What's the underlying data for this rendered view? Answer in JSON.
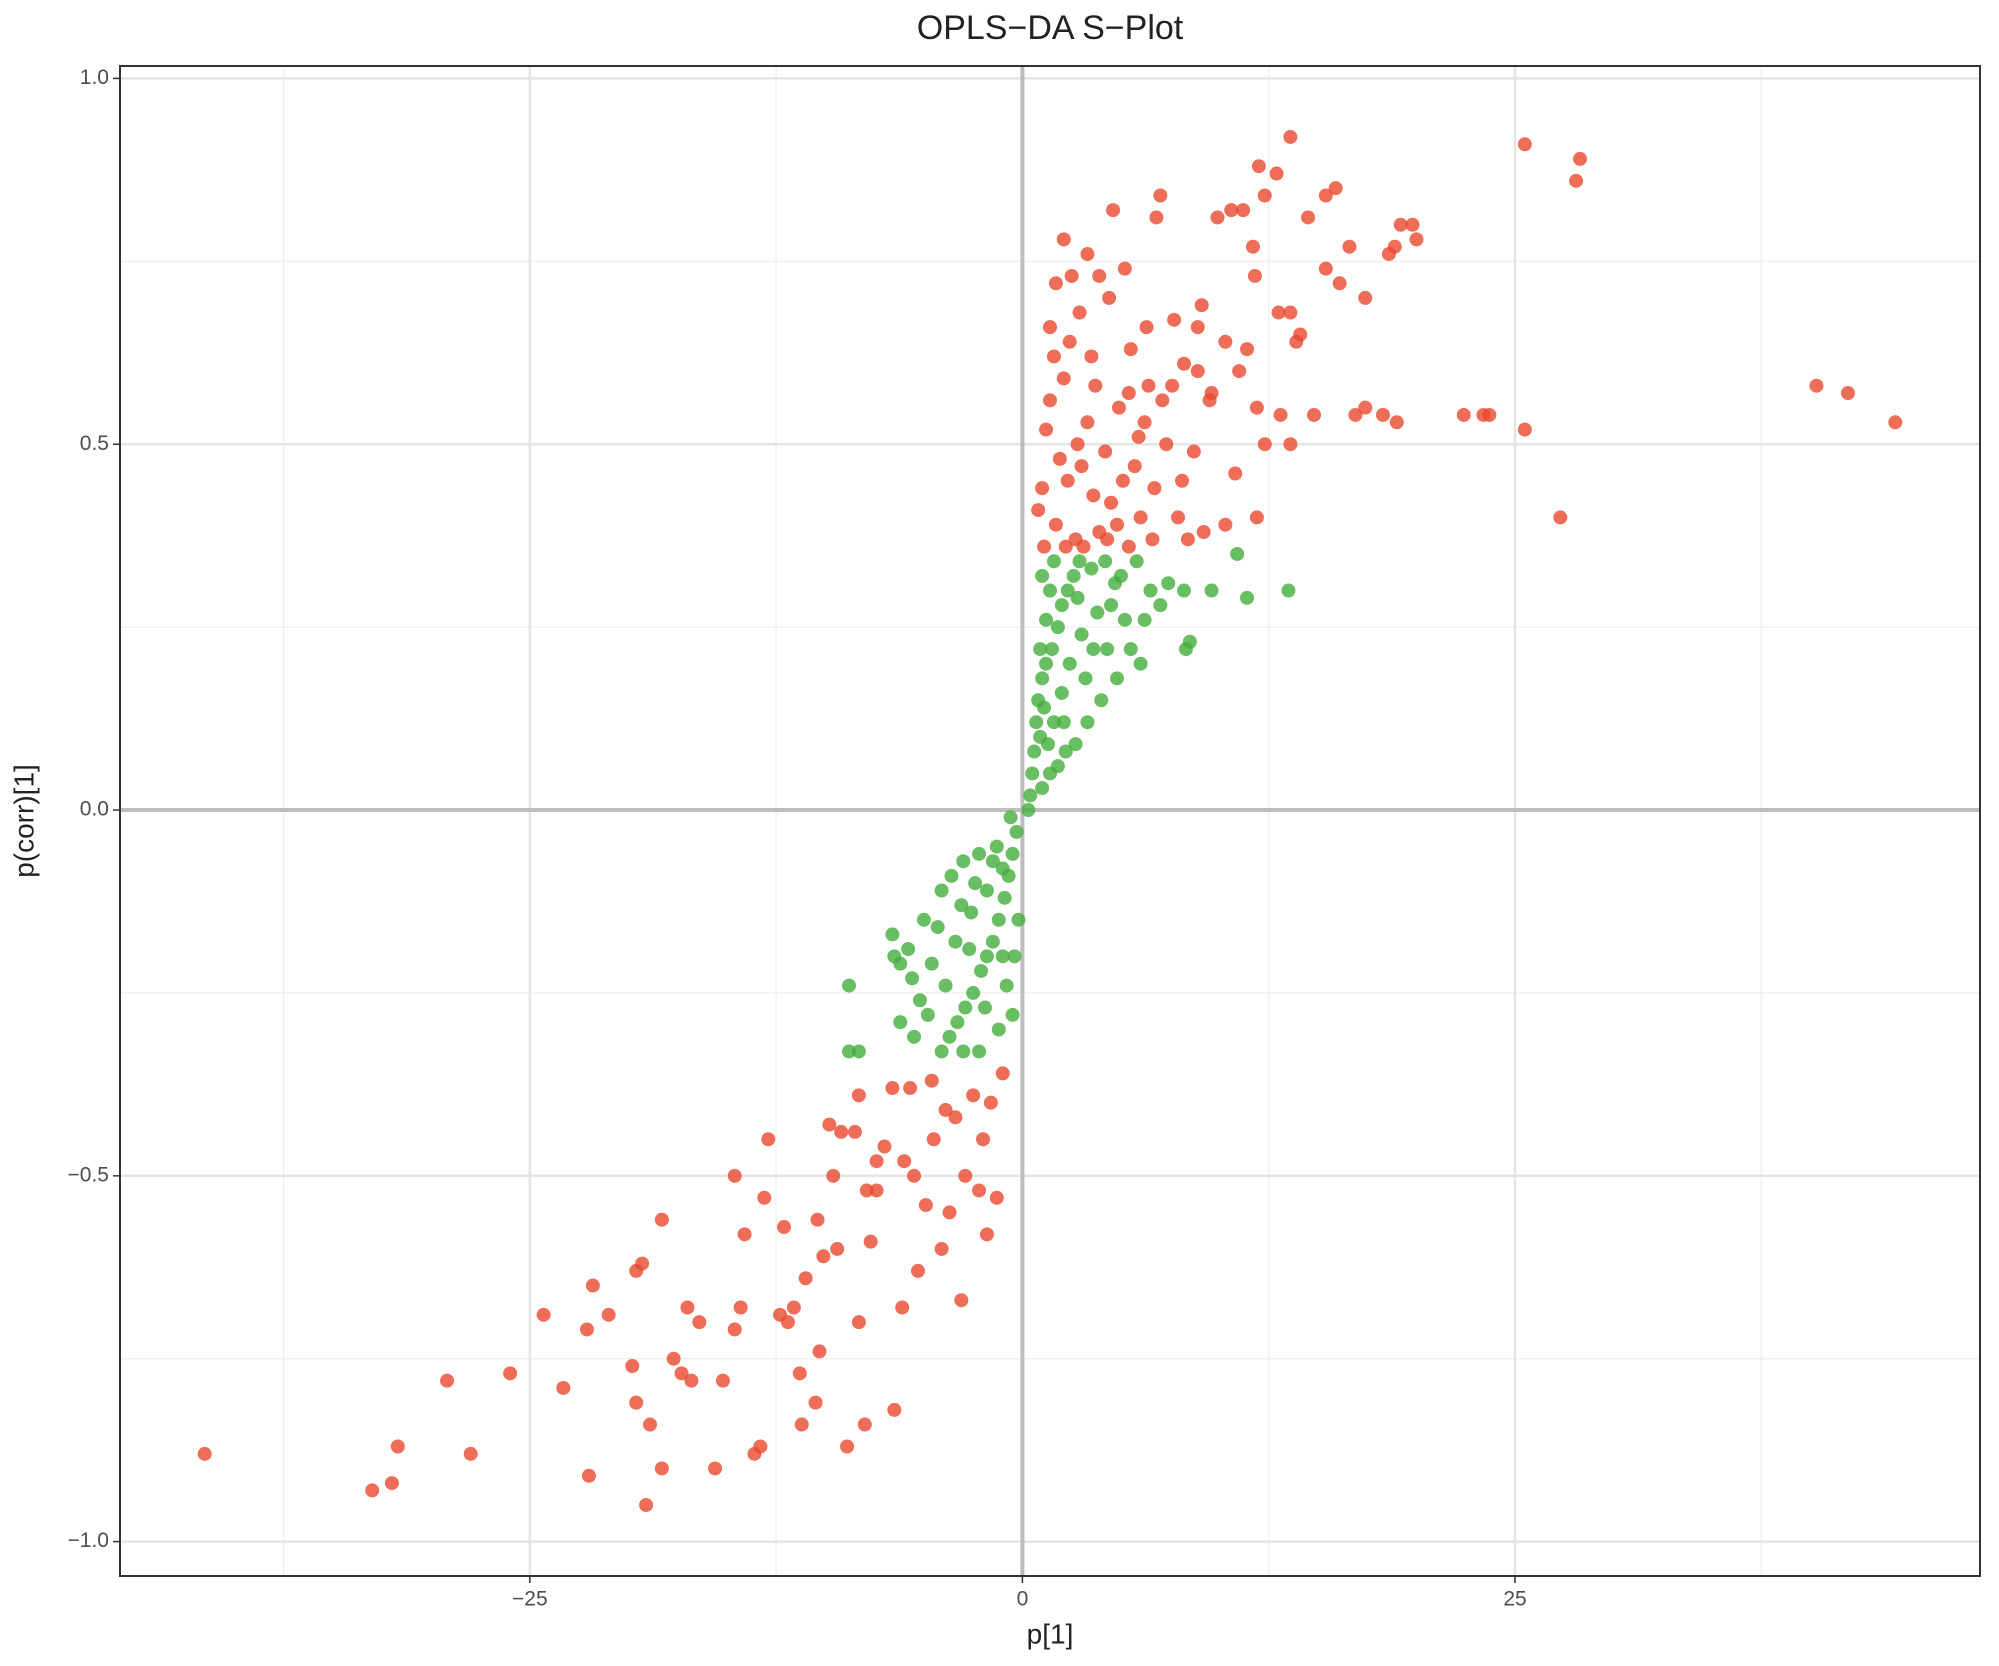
{
  "chart_data": {
    "type": "scatter",
    "title": "OPLS−DA S−Plot",
    "x_label": "p[1]",
    "y_label": "p(corr)[1]",
    "xlim": [
      -45.8,
      48.6
    ],
    "ylim": [
      -1.047,
      1.017
    ],
    "xticks": [
      {
        "value": -25,
        "label": "−25"
      },
      0,
      25
    ],
    "yticks": [
      {
        "value": -1.0,
        "label": "−1.0"
      },
      {
        "value": -0.5,
        "label": "−0.5"
      },
      {
        "value": 0.0,
        "label": "0.0"
      },
      {
        "value": 0.5,
        "label": "0.5"
      },
      {
        "value": 1.0,
        "label": "1.0"
      }
    ],
    "grid": true,
    "zero_lines": {
      "x": 0,
      "y": 0
    },
    "series": [
      {
        "color": "#e8492e",
        "x": [
          25.5,
          13.6,
          28.3,
          28.1,
          12.0,
          12.9,
          15.9,
          15.4,
          12.3,
          4.6,
          7.0,
          10.6,
          11.2,
          14.5,
          9.9,
          6.8,
          19.2,
          19.8,
          20.0,
          2.1,
          11.7,
          16.6,
          18.9,
          18.6,
          15.4,
          3.3,
          2.5,
          5.2,
          11.8,
          16.1,
          17.4,
          1.7,
          3.9,
          4.4,
          9.1,
          7.7,
          13.0,
          13.6,
          8.9,
          1.4,
          2.4,
          5.5,
          10.3,
          14.1,
          11.4,
          13.9,
          40.3,
          41.9,
          44.3,
          25.5,
          27.3,
          22.4,
          23.4,
          23.7,
          17.4,
          18.3,
          19.0,
          16.9,
          13.1,
          14.8,
          12.3,
          13.6,
          11.9,
          9.5,
          1.4,
          2.1,
          3.7,
          5.4,
          6.4,
          7.6,
          8.9,
          11.0,
          1.2,
          2.8,
          4.2,
          5.9,
          7.3,
          8.7,
          1.0,
          2.3,
          3.6,
          5.1,
          6.7,
          8.1,
          10.8,
          11.9,
          0.8,
          1.7,
          2.7,
          3.9,
          4.8,
          6.0,
          7.9,
          9.2,
          10.3,
          1.1,
          2.2,
          3.1,
          4.3,
          5.4,
          6.6,
          8.4,
          1.9,
          3.3,
          4.9,
          6.2,
          3.0,
          4.5,
          5.7,
          7.1,
          1.6,
          2.9,
          6.3,
          8.2,
          9.6,
          3.5,
          -41.5,
          -33.0,
          -32.0,
          -31.7,
          -29.2,
          -28.0,
          -26.0,
          -24.3,
          -23.3,
          -22.1,
          -21.8,
          -21.0,
          -22.0,
          -19.8,
          -19.6,
          -19.6,
          -19.3,
          -19.1,
          -18.9,
          -18.3,
          -18.3,
          -17.7,
          -17.3,
          -17.0,
          -16.8,
          -16.4,
          -15.6,
          -15.2,
          -14.6,
          -14.6,
          -14.3,
          -14.1,
          -13.6,
          -13.3,
          -13.1,
          -12.9,
          -12.3,
          -12.1,
          -11.9,
          -11.6,
          -11.3,
          -11.2,
          -11.0,
          -10.5,
          -10.3,
          -10.1,
          -9.4,
          -9.6,
          -9.2,
          -8.9,
          -8.3,
          -8.0,
          -7.7,
          -7.4,
          -7.0,
          -6.5,
          -6.1,
          -6.0,
          -5.7,
          -5.3,
          -4.9,
          -4.5,
          -4.1,
          -3.9,
          -3.1,
          -2.9,
          -2.5,
          -1.8,
          -1.3,
          -1.0,
          -2.0,
          -3.4,
          -4.6,
          -6.6,
          -8.5,
          -7.9,
          -5.5,
          -3.7,
          -2.2,
          -1.6,
          -9.8,
          -8.3,
          -10.4,
          -7.4
        ],
        "values": [
          0.91,
          0.92,
          0.89,
          0.86,
          0.88,
          0.87,
          0.85,
          0.84,
          0.84,
          0.82,
          0.84,
          0.82,
          0.82,
          0.81,
          0.81,
          0.81,
          0.8,
          0.8,
          0.78,
          0.78,
          0.77,
          0.77,
          0.77,
          0.76,
          0.74,
          0.76,
          0.73,
          0.74,
          0.73,
          0.72,
          0.7,
          0.72,
          0.73,
          0.7,
          0.69,
          0.67,
          0.68,
          0.68,
          0.66,
          0.66,
          0.64,
          0.63,
          0.64,
          0.65,
          0.63,
          0.64,
          0.58,
          0.57,
          0.53,
          0.52,
          0.4,
          0.54,
          0.54,
          0.54,
          0.55,
          0.54,
          0.53,
          0.54,
          0.54,
          0.54,
          0.5,
          0.5,
          0.55,
          0.56,
          0.56,
          0.59,
          0.58,
          0.57,
          0.58,
          0.58,
          0.6,
          0.6,
          0.52,
          0.5,
          0.49,
          0.51,
          0.5,
          0.49,
          0.44,
          0.45,
          0.43,
          0.45,
          0.44,
          0.45,
          0.46,
          0.4,
          0.41,
          0.39,
          0.37,
          0.38,
          0.39,
          0.4,
          0.4,
          0.38,
          0.39,
          0.36,
          0.36,
          0.36,
          0.37,
          0.36,
          0.37,
          0.37,
          0.48,
          0.53,
          0.55,
          0.53,
          0.47,
          0.42,
          0.47,
          0.56,
          0.62,
          0.68,
          0.66,
          0.61,
          0.57,
          0.62,
          -0.88,
          -0.93,
          -0.92,
          -0.87,
          -0.78,
          -0.88,
          -0.77,
          -0.69,
          -0.79,
          -0.71,
          -0.65,
          -0.69,
          -0.91,
          -0.76,
          -0.81,
          -0.63,
          -0.62,
          -0.95,
          -0.84,
          -0.9,
          -0.56,
          -0.75,
          -0.77,
          -0.68,
          -0.78,
          -0.7,
          -0.9,
          -0.78,
          -0.71,
          -0.5,
          -0.68,
          -0.58,
          -0.88,
          -0.87,
          -0.53,
          -0.45,
          -0.69,
          -0.57,
          -0.7,
          -0.68,
          -0.77,
          -0.84,
          -0.64,
          -0.81,
          -0.74,
          -0.61,
          -0.6,
          -0.5,
          -0.44,
          -0.87,
          -0.7,
          -0.84,
          -0.59,
          -0.52,
          -0.46,
          -0.82,
          -0.68,
          -0.48,
          -0.38,
          -0.63,
          -0.54,
          -0.45,
          -0.6,
          -0.41,
          -0.67,
          -0.5,
          -0.39,
          -0.58,
          -0.53,
          -0.36,
          -0.45,
          -0.42,
          -0.37,
          -0.38,
          -0.44,
          -0.52,
          -0.5,
          -0.55,
          -0.52,
          -0.4,
          -0.43,
          -0.39,
          -0.56,
          -0.48
        ]
      },
      {
        "color": "#43ad3c",
        "x": [
          0.5,
          0.6,
          0.7,
          0.8,
          1.0,
          1.2,
          0.9,
          1.1,
          1.5,
          1.8,
          2.0,
          2.3,
          2.6,
          1.4,
          1.0,
          1.6,
          2.9,
          3.5,
          4.2,
          5.0,
          5.8,
          6.5,
          7.4,
          8.2,
          9.6,
          10.9,
          11.4,
          13.5,
          8.5,
          8.3,
          6.0,
          5.5,
          4.8,
          4.0,
          3.3,
          2.7,
          2.2,
          1.8,
          1.4,
          1.0,
          0.4,
          0.3,
          3.0,
          3.8,
          4.5,
          2.4,
          2.0,
          1.6,
          3.2,
          4.3,
          5.2,
          6.2,
          7.0,
          1.2,
          0.9,
          2.8,
          3.6,
          4.7,
          2.1,
          1.3,
          -0.3,
          -0.5,
          -0.7,
          -0.9,
          -1.2,
          -1.5,
          -1.8,
          -2.1,
          -2.5,
          -2.9,
          -3.3,
          -3.7,
          -4.1,
          -3.0,
          -2.2,
          -1.2,
          -0.5,
          -0.2,
          -0.4,
          -0.8,
          -1.0,
          -1.5,
          -2.2,
          -3.0,
          -3.6,
          -4.1,
          -5.0,
          -5.8,
          -6.2,
          -6.5,
          -5.6,
          -5.2,
          -4.8,
          -5.5,
          -6.2,
          -8.3,
          -8.8,
          -8.8,
          -6.6,
          -4.6,
          -3.4,
          -2.6,
          -1.8,
          -1.3,
          -0.6,
          -2.7,
          -3.9,
          -1.9,
          -1.0,
          -4.3,
          -2.4,
          -3.1
        ],
        "values": [
          0.05,
          0.08,
          0.12,
          0.15,
          0.18,
          0.2,
          0.1,
          0.14,
          0.22,
          0.25,
          0.28,
          0.3,
          0.32,
          0.3,
          0.32,
          0.34,
          0.34,
          0.33,
          0.34,
          0.32,
          0.34,
          0.3,
          0.31,
          0.3,
          0.3,
          0.35,
          0.29,
          0.3,
          0.23,
          0.22,
          0.2,
          0.22,
          0.18,
          0.15,
          0.12,
          0.09,
          0.08,
          0.06,
          0.05,
          0.03,
          0.02,
          0.0,
          0.24,
          0.27,
          0.28,
          0.2,
          0.16,
          0.12,
          0.18,
          0.22,
          0.26,
          0.26,
          0.28,
          0.26,
          0.22,
          0.29,
          0.22,
          0.31,
          0.12,
          0.09,
          -0.03,
          -0.06,
          -0.09,
          -0.12,
          -0.15,
          -0.18,
          -0.2,
          -0.22,
          -0.25,
          -0.27,
          -0.29,
          -0.31,
          -0.33,
          -0.33,
          -0.33,
          -0.3,
          -0.28,
          -0.15,
          -0.2,
          -0.24,
          -0.08,
          -0.07,
          -0.06,
          -0.07,
          -0.09,
          -0.11,
          -0.15,
          -0.19,
          -0.21,
          -0.2,
          -0.23,
          -0.26,
          -0.28,
          -0.31,
          -0.29,
          -0.33,
          -0.33,
          -0.24,
          -0.17,
          -0.21,
          -0.18,
          -0.14,
          -0.11,
          -0.05,
          -0.01,
          -0.19,
          -0.24,
          -0.27,
          -0.2,
          -0.16,
          -0.1,
          -0.13
        ]
      }
    ]
  }
}
